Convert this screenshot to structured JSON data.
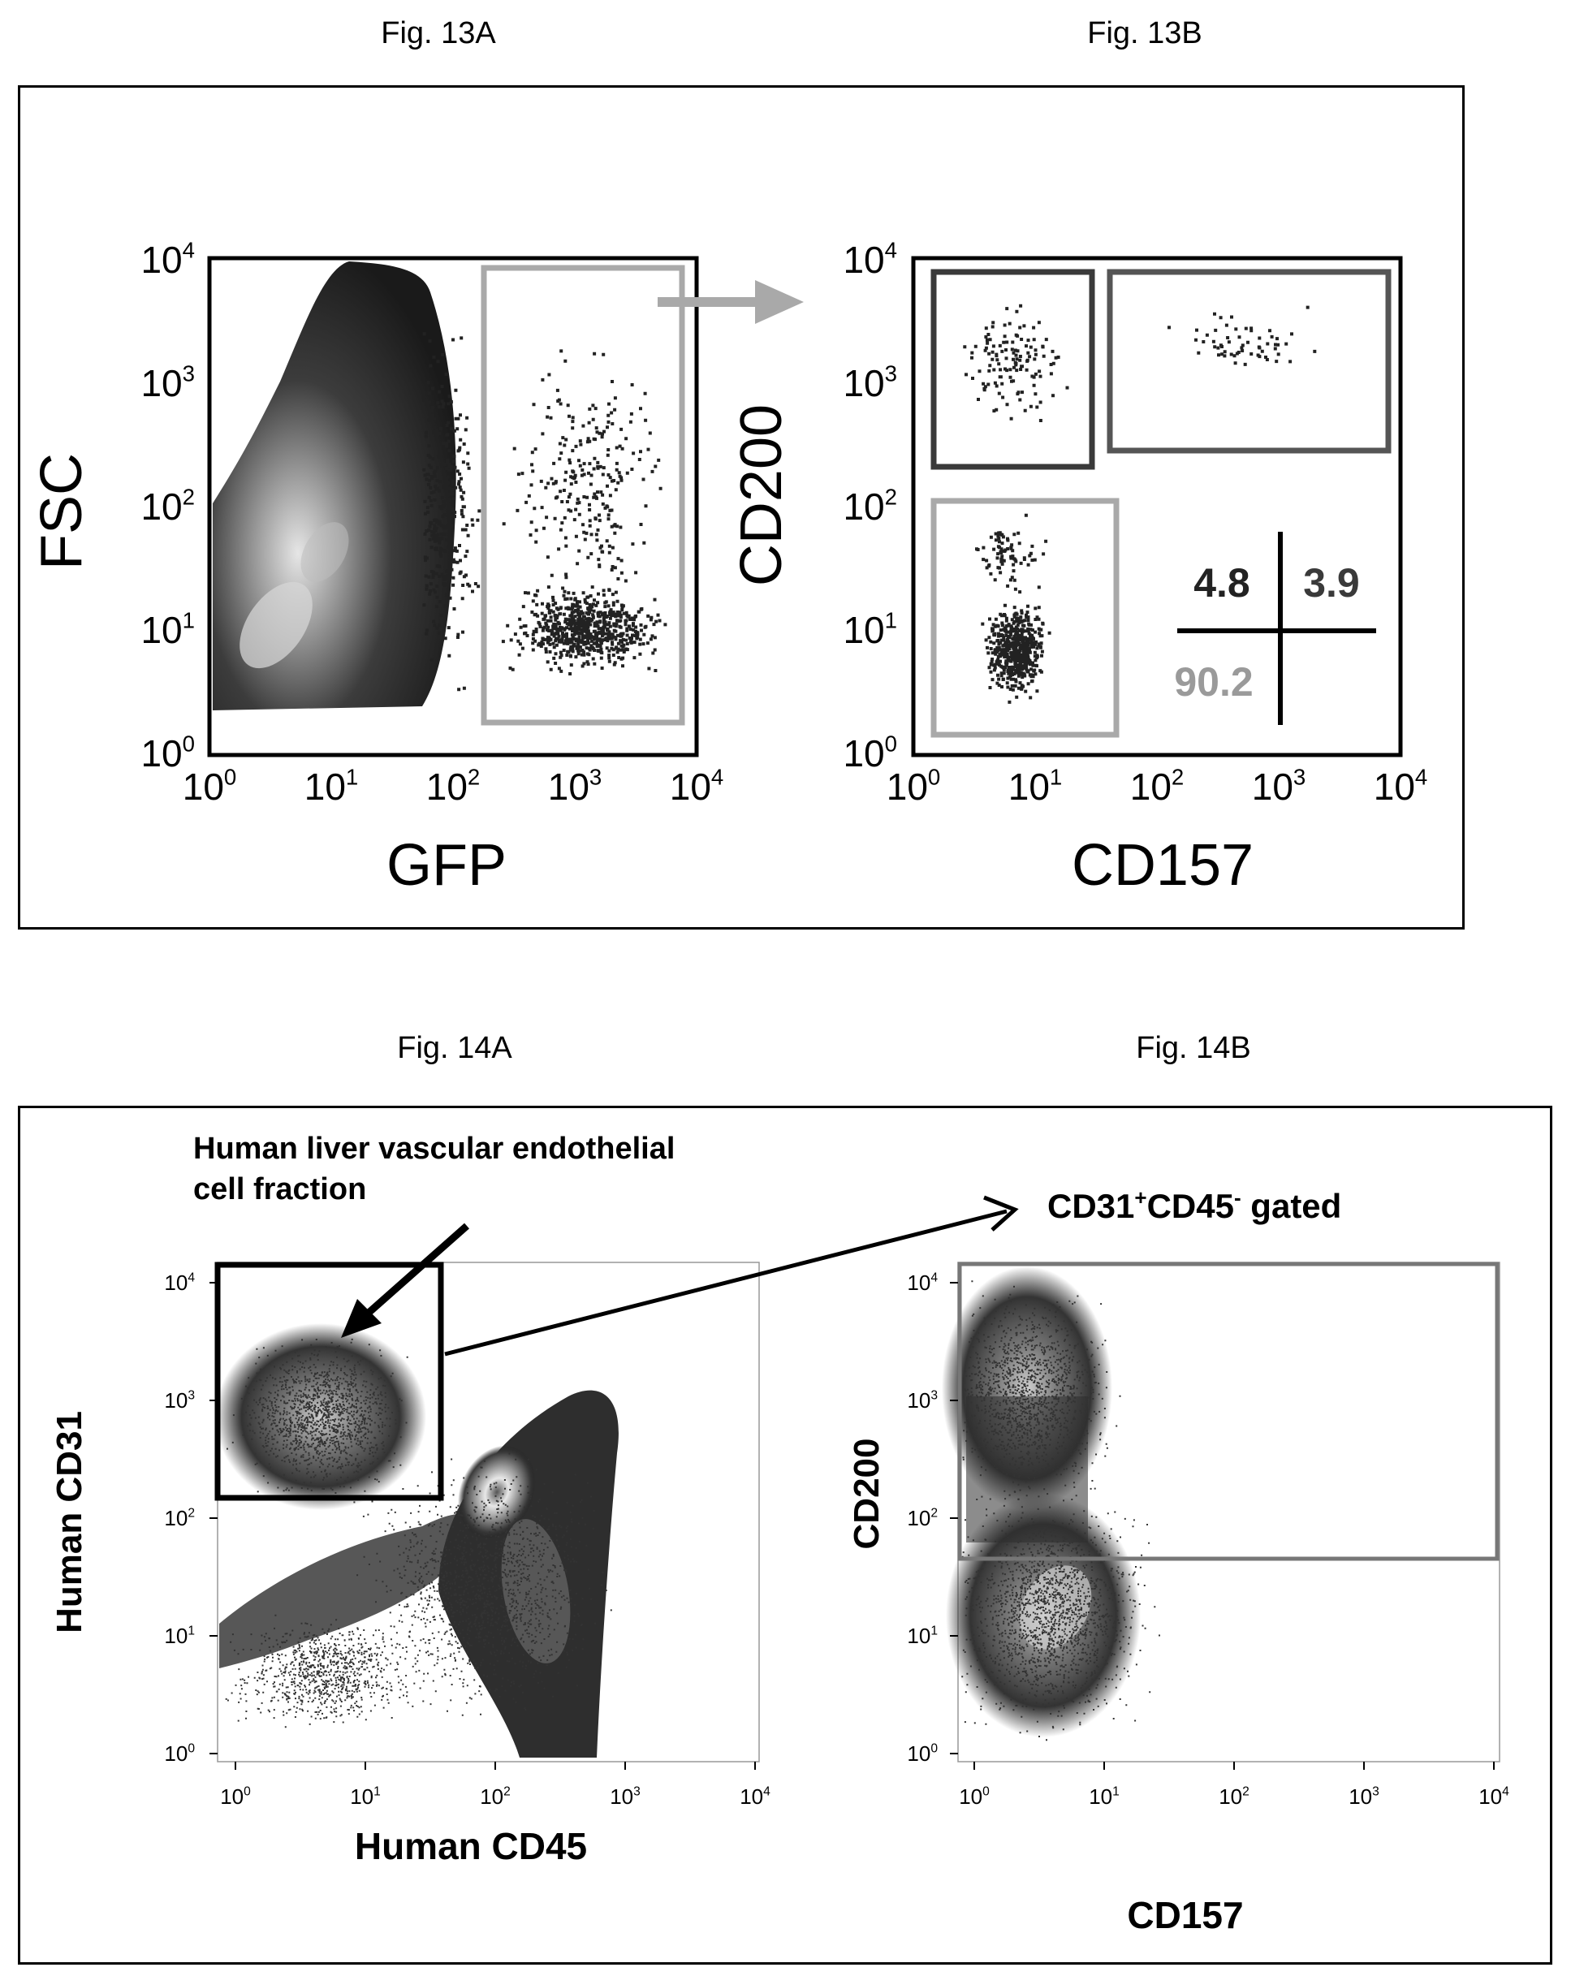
{
  "figures": {
    "fig13a": {
      "label": "Fig. 13A"
    },
    "fig13b": {
      "label": "Fig. 13B"
    },
    "fig14a": {
      "label": "Fig. 14A"
    },
    "fig14b": {
      "label": "Fig. 14B"
    }
  },
  "plots": {
    "p13a": {
      "xlabel": "GFP",
      "ylabel": "FSC",
      "ticks": [
        "0",
        "1",
        "2",
        "3",
        "4"
      ],
      "tick_base": "10"
    },
    "p13b": {
      "xlabel": "CD157",
      "ylabel": "CD200",
      "ticks": [
        "0",
        "1",
        "2",
        "3",
        "4"
      ],
      "tick_base": "10",
      "quadrant_values": {
        "upper_left": "4.8",
        "upper_right": "3.9",
        "lower_left": "90.2"
      }
    },
    "p14a": {
      "xlabel": "Human CD45",
      "ylabel": "Human CD31",
      "ticks": [
        "0",
        "1",
        "2",
        "3",
        "4"
      ],
      "tick_base": "10",
      "annotation_line1": "Human liver vascular endothelial",
      "annotation_line2": "cell fraction"
    },
    "p14b": {
      "xlabel": "CD157",
      "ylabel": "CD200",
      "ticks": [
        "0",
        "1",
        "2",
        "3",
        "4"
      ],
      "tick_base": "10",
      "gate_label_1": "CD31",
      "gate_label_sup1": "+",
      "gate_label_2": "CD45",
      "gate_label_sup2": "-",
      "gate_label_3": " gated"
    }
  },
  "colors": {
    "gate_gray": "#a9a9a9",
    "gate_dark": "#3a3a3a",
    "arrow_gray": "#a9a9a9",
    "text_gray": "#9a9a9a"
  }
}
